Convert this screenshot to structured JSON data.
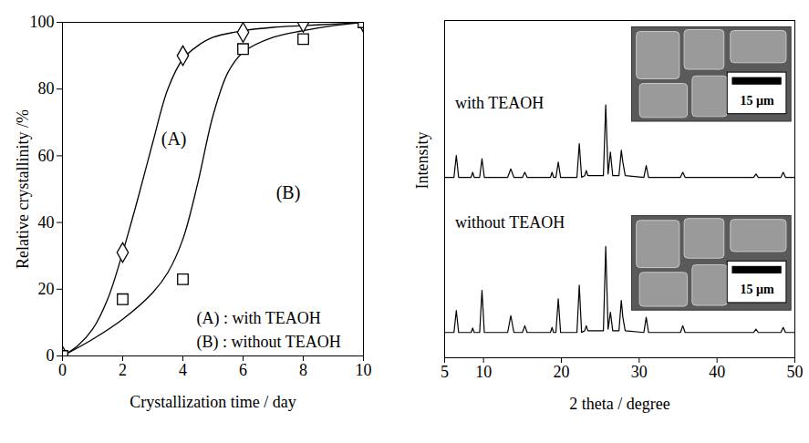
{
  "chart_data": [
    {
      "type": "line",
      "x_label": "Crystallization time / day",
      "y_label": "Relative crystallinity /%",
      "xlim": [
        0,
        10
      ],
      "xticks": [
        0,
        2,
        4,
        6,
        8,
        10
      ],
      "ylim": [
        0,
        100
      ],
      "yticks": [
        0,
        20,
        40,
        60,
        80,
        100
      ],
      "grid": false,
      "legend": "bottom-right",
      "series": [
        {
          "name": "(A) : with TEAOH",
          "color": "#000000",
          "marker": "diamond",
          "x": [
            0,
            2,
            4,
            6,
            8,
            10
          ],
          "values": [
            0,
            31,
            90,
            97,
            100,
            100
          ],
          "fit": {
            "x": [
              0,
              0.5,
              1,
              1.5,
              2,
              2.5,
              3,
              3.5,
              4,
              4.5,
              5,
              6,
              7,
              8,
              9,
              10
            ],
            "values": [
              0,
              3,
              8,
              17,
              31,
              47,
              64,
              80,
              89,
              93,
              95.5,
              97.5,
              98.5,
              99,
              99.5,
              100
            ]
          }
        },
        {
          "name": "(B) : without TEAOH",
          "color": "#000000",
          "marker": "square",
          "x": [
            0,
            2,
            4,
            6,
            8,
            10
          ],
          "values": [
            0,
            17,
            23,
            92,
            95,
            100
          ],
          "fit": {
            "x": [
              0,
              1,
              2,
              3,
              3.5,
              4,
              4.5,
              5,
              5.5,
              6,
              7,
              8,
              9,
              10
            ],
            "values": [
              0,
              5,
              11,
              19,
              25,
              35,
              52,
              72,
              85,
              91,
              95.5,
              97.5,
              99,
              100
            ]
          }
        }
      ],
      "annotations": [
        {
          "text": "(A)",
          "x": 3.7,
          "y": 65
        },
        {
          "text": "(B)",
          "x": 7.5,
          "y": 49
        }
      ]
    },
    {
      "type": "line",
      "x_label": "2 theta / degree",
      "y_label": "Intensity",
      "xlim": [
        5,
        50
      ],
      "xticks": [
        5,
        10,
        20,
        30,
        40,
        50
      ],
      "ylim": [
        0,
        100
      ],
      "tick_labels": "x",
      "x": [
        5,
        6.2,
        6.5,
        6.8,
        8.4,
        8.6,
        8.8,
        9.5,
        9.8,
        10.1,
        13.1,
        13.5,
        13.9,
        15.0,
        15.3,
        15.6,
        18.6,
        18.8,
        19.0,
        19.3,
        19.6,
        19.9,
        22.0,
        22.3,
        22.6,
        23.0,
        23.2,
        23.4,
        25.4,
        25.7,
        26.0,
        26.3,
        26.6,
        27.4,
        27.7,
        27.9,
        28.2,
        30.6,
        30.9,
        31.2,
        35.3,
        35.6,
        35.9,
        44.7,
        45.0,
        45.3,
        48.2,
        48.5,
        48.8,
        50
      ],
      "series": [
        {
          "name": "with TEAOH",
          "color": "#000000",
          "values": [
            53.5,
            53.5,
            60,
            53.5,
            53.5,
            55,
            53.5,
            53.5,
            59,
            53.5,
            53.5,
            56,
            53.5,
            53.5,
            55,
            53.5,
            53.5,
            55,
            53.5,
            53.5,
            58,
            53.5,
            53.5,
            63.5,
            53.5,
            54,
            55.5,
            54,
            54,
            75,
            54.5,
            61,
            54,
            54,
            61.5,
            58,
            54,
            53.5,
            57,
            53.5,
            53.5,
            55,
            53.5,
            53.5,
            54.5,
            53.5,
            53.5,
            55,
            53.5,
            53.5
          ]
        },
        {
          "name": "without TEAOH",
          "color": "#000000",
          "values": [
            7.5,
            7.5,
            14,
            7.5,
            7.5,
            8.8,
            7.5,
            7.5,
            20,
            7.5,
            7.5,
            12.5,
            7.5,
            7.5,
            9.5,
            7.5,
            7.5,
            9,
            7.5,
            7.5,
            17.5,
            7.5,
            7.5,
            21.5,
            7.5,
            8,
            9.5,
            8,
            8,
            33,
            8.5,
            13.5,
            8,
            8,
            17,
            12,
            8,
            7.5,
            12,
            7.5,
            7.5,
            9.5,
            7.5,
            7.5,
            8.5,
            7.5,
            7.5,
            9,
            7.5,
            7.5
          ]
        }
      ],
      "insets": [
        {
          "scale_bar": "15 µm"
        },
        {
          "scale_bar": "15 µm"
        }
      ]
    }
  ]
}
